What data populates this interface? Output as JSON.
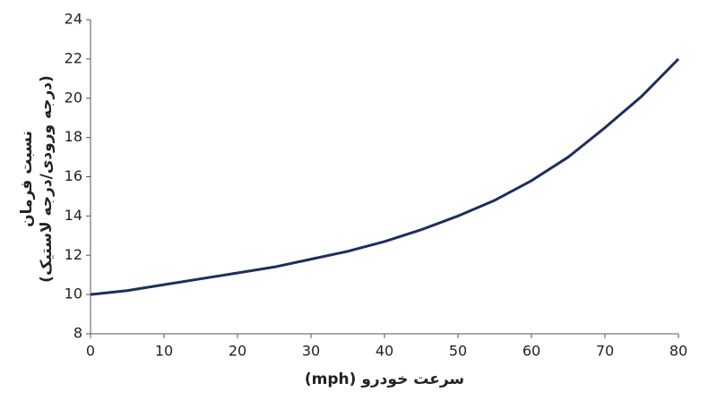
{
  "chart_data": {
    "type": "line",
    "xlabel": "سرعت خودرو (mph)",
    "ylabel": [
      "نسبت فرمان",
      "(درجه ورودی/درجه لاستیک)"
    ],
    "x": [
      0,
      5,
      10,
      15,
      20,
      25,
      30,
      35,
      40,
      45,
      50,
      55,
      60,
      65,
      70,
      75,
      80
    ],
    "series": [
      {
        "color": "#1f2d5e",
        "values": [
          10.0,
          10.2,
          10.5,
          10.8,
          11.1,
          11.4,
          11.8,
          12.2,
          12.7,
          13.3,
          14.0,
          14.8,
          15.8,
          17.0,
          18.5,
          20.1,
          22.0
        ]
      }
    ],
    "xlim": [
      0,
      80
    ],
    "xticks": [
      0,
      10,
      20,
      30,
      40,
      50,
      60,
      70,
      80
    ],
    "ylim": [
      8,
      24
    ],
    "yticks": [
      8,
      10,
      12,
      14,
      16,
      18,
      20,
      22,
      24
    ],
    "grid": false
  }
}
